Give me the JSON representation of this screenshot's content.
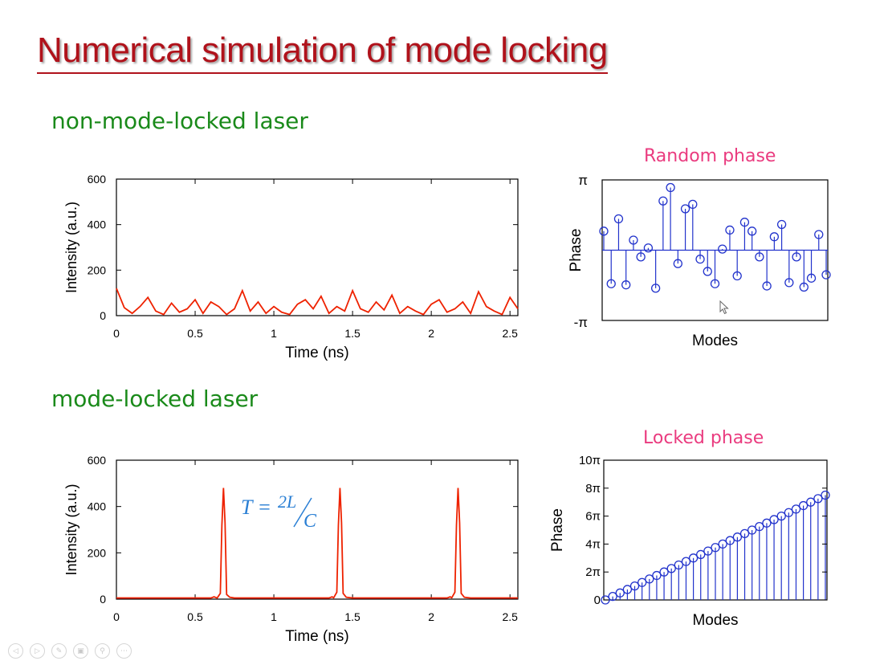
{
  "slide": {
    "title": "Numerical simulation of mode locking"
  },
  "sections": {
    "non_mode_locked": "non-mode-locked laser",
    "mode_locked": "mode-locked laser"
  },
  "captions": {
    "random_phase": "Random phase",
    "locked_phase": "Locked phase"
  },
  "toolbar": {
    "icons": [
      "previous-icon",
      "next-icon",
      "pen-icon",
      "slides-icon",
      "zoom-icon",
      "more-icon"
    ]
  },
  "colors": {
    "title": "#b0121b",
    "section": "#1a8a1a",
    "caption": "#ea3b7f",
    "intensity_line": "#ee2200",
    "stem": "#2233cc",
    "annotation": "#2a7fd4"
  },
  "chart_data": [
    {
      "id": "intensity-non-locked",
      "type": "line",
      "xlabel": "Time (ns)",
      "ylabel": "Intensity (a.u.)",
      "xlim": [
        0,
        2.55
      ],
      "ylim": [
        0,
        600
      ],
      "xticks": [
        "0",
        "0.5",
        "1",
        "1.5",
        "2",
        "2.5"
      ],
      "yticks": [
        "0",
        "200",
        "400",
        "600"
      ],
      "series": [
        {
          "x": [
            0,
            0.05,
            0.1,
            0.15,
            0.2,
            0.25,
            0.3,
            0.35,
            0.4,
            0.45,
            0.5,
            0.55,
            0.6,
            0.65,
            0.7,
            0.75,
            0.8,
            0.85,
            0.9,
            0.95,
            1.0,
            1.05,
            1.1,
            1.15,
            1.2,
            1.25,
            1.3,
            1.35,
            1.4,
            1.45,
            1.5,
            1.55,
            1.6,
            1.65,
            1.7,
            1.75,
            1.8,
            1.85,
            1.9,
            1.95,
            2.0,
            2.05,
            2.1,
            2.15,
            2.2,
            2.25,
            2.3,
            2.35,
            2.4,
            2.45,
            2.5,
            2.55
          ],
          "values": [
            120,
            35,
            10,
            40,
            80,
            20,
            5,
            55,
            15,
            30,
            70,
            10,
            60,
            40,
            5,
            30,
            110,
            20,
            60,
            10,
            40,
            15,
            5,
            50,
            70,
            30,
            85,
            10,
            40,
            20,
            110,
            30,
            15,
            60,
            25,
            90,
            10,
            40,
            20,
            5,
            50,
            70,
            15,
            30,
            60,
            10,
            105,
            40,
            20,
            5,
            80,
            30
          ]
        }
      ]
    },
    {
      "id": "intensity-locked",
      "type": "line",
      "xlabel": "Time (ns)",
      "ylabel": "Intensity (a.u.)",
      "xlim": [
        0,
        2.55
      ],
      "ylim": [
        0,
        600
      ],
      "xticks": [
        "0",
        "0.5",
        "1",
        "1.5",
        "2",
        "2.5"
      ],
      "yticks": [
        "0",
        "200",
        "400",
        "600"
      ],
      "annotation": {
        "lhs": "T =",
        "num": "2L",
        "den": "C"
      },
      "series": [
        {
          "x": [
            0,
            0.6,
            0.62,
            0.64,
            0.66,
            0.67,
            0.68,
            0.69,
            0.7,
            0.72,
            0.75,
            1.35,
            1.37,
            1.38,
            1.4,
            1.41,
            1.42,
            1.43,
            1.44,
            1.46,
            1.5,
            2.1,
            2.12,
            2.13,
            2.15,
            2.16,
            2.17,
            2.18,
            2.19,
            2.21,
            2.25,
            2.55
          ],
          "values": [
            5,
            5,
            10,
            5,
            25,
            320,
            480,
            330,
            20,
            8,
            5,
            5,
            10,
            6,
            30,
            320,
            480,
            330,
            25,
            8,
            5,
            5,
            10,
            6,
            30,
            320,
            480,
            330,
            25,
            8,
            5,
            5
          ]
        }
      ]
    },
    {
      "id": "phase-random",
      "type": "stem",
      "xlabel": "Modes",
      "ylabel": "Phase",
      "ylim_labels": [
        "-π",
        "π"
      ],
      "ylim": [
        -3.14159,
        3.14159
      ],
      "values": [
        0.85,
        -1.5,
        1.4,
        -1.55,
        0.45,
        -0.3,
        0.1,
        -1.7,
        2.2,
        2.8,
        -0.6,
        1.85,
        2.05,
        -0.4,
        -0.95,
        -1.5,
        0.05,
        0.9,
        -1.15,
        1.25,
        0.85,
        -0.3,
        -1.6,
        0.6,
        1.15,
        -1.45,
        -0.3,
        -1.65,
        -1.25,
        0.7,
        -1.1
      ]
    },
    {
      "id": "phase-locked",
      "type": "stem",
      "xlabel": "Modes",
      "ylabel": "Phase",
      "ylim": [
        0,
        10
      ],
      "yunit": "π",
      "yticks": [
        "0",
        "2π",
        "4π",
        "6π",
        "8π",
        "10π"
      ],
      "values": [
        0,
        0.25,
        0.5,
        0.75,
        1,
        1.25,
        1.5,
        1.75,
        2,
        2.25,
        2.5,
        2.75,
        3,
        3.25,
        3.5,
        3.75,
        4,
        4.25,
        4.5,
        4.75,
        5,
        5.25,
        5.5,
        5.75,
        6,
        6.25,
        6.5,
        6.75,
        7,
        7.25,
        7.5
      ]
    }
  ]
}
